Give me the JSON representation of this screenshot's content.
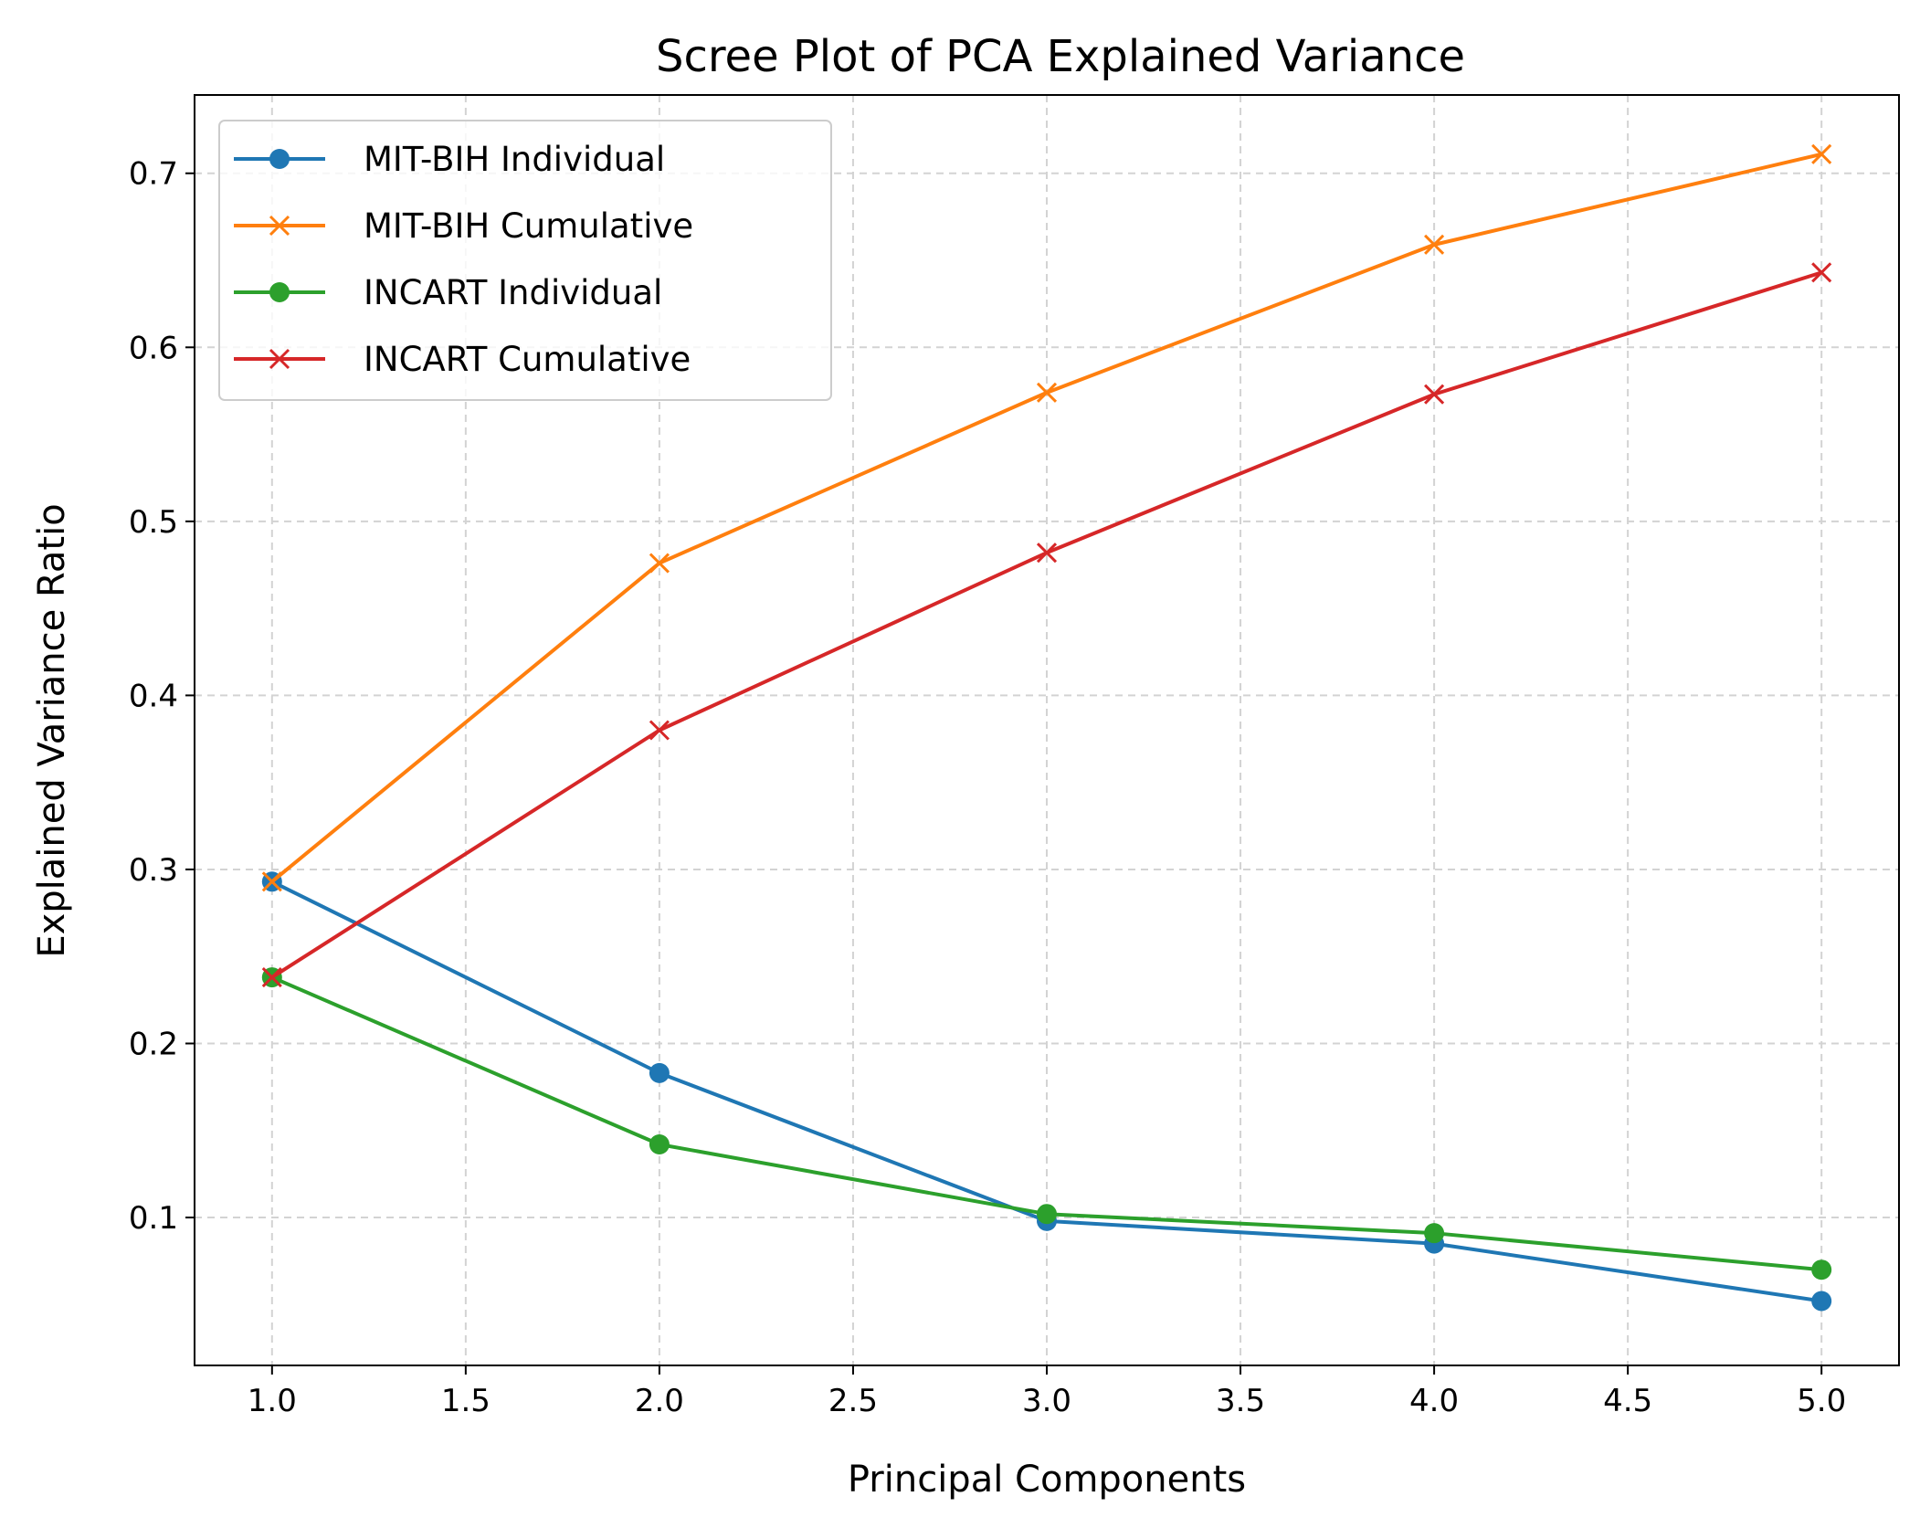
{
  "chart_data": {
    "type": "line",
    "title": "Scree Plot of PCA Explained Variance",
    "xlabel": "Principal Components",
    "ylabel": "Explained Variance Ratio",
    "xlim": [
      0.8,
      5.2
    ],
    "ylim": [
      0.015,
      0.745
    ],
    "xticks": [
      1.0,
      1.5,
      2.0,
      2.5,
      3.0,
      3.5,
      4.0,
      4.5,
      5.0
    ],
    "xtick_labels": [
      "1.0",
      "1.5",
      "2.0",
      "2.5",
      "3.0",
      "3.5",
      "4.0",
      "4.5",
      "5.0"
    ],
    "yticks": [
      0.1,
      0.2,
      0.3,
      0.4,
      0.5,
      0.6,
      0.7
    ],
    "ytick_labels": [
      "0.1",
      "0.2",
      "0.3",
      "0.4",
      "0.5",
      "0.6",
      "0.7"
    ],
    "grid": true,
    "legend_position": "top-left",
    "x": [
      1,
      2,
      3,
      4,
      5
    ],
    "series": [
      {
        "name": "MIT-BIH Individual",
        "marker": "circle",
        "color": "#1f77b4",
        "values": [
          0.293,
          0.183,
          0.098,
          0.085,
          0.052
        ]
      },
      {
        "name": "MIT-BIH Cumulative",
        "marker": "x",
        "color": "#ff7f0e",
        "values": [
          0.293,
          0.476,
          0.574,
          0.659,
          0.711
        ]
      },
      {
        "name": "INCART Individual",
        "marker": "circle",
        "color": "#2ca02c",
        "values": [
          0.238,
          0.142,
          0.102,
          0.091,
          0.07
        ]
      },
      {
        "name": "INCART Cumulative",
        "marker": "x",
        "color": "#d62728",
        "values": [
          0.238,
          0.38,
          0.482,
          0.573,
          0.643
        ]
      }
    ]
  }
}
